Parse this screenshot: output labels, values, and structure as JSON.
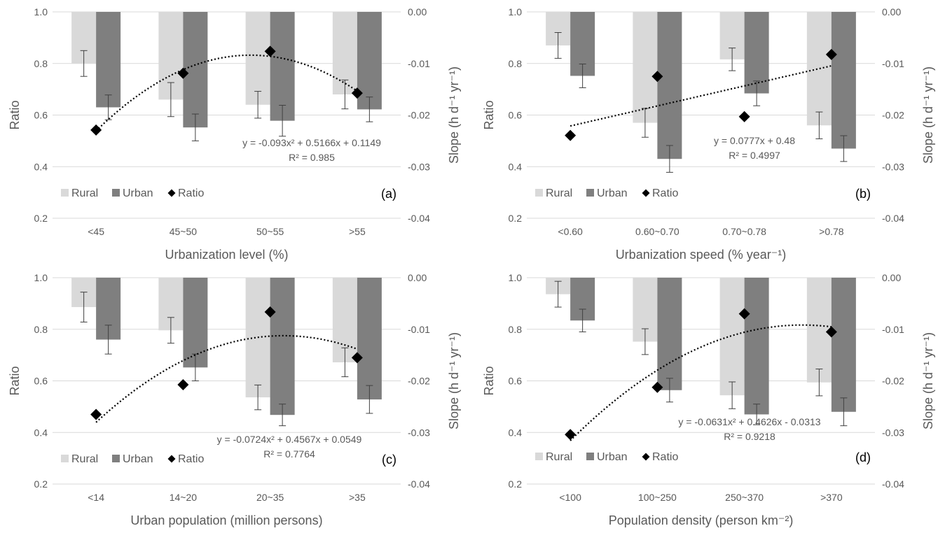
{
  "colors": {
    "rural": "#d9d9d9",
    "urban": "#7f7f7f",
    "ratio": "#000000",
    "text": "#595959",
    "grid": "#d9d9d9",
    "error_bar": "#404040"
  },
  "chart_data": [
    {
      "type": "bar",
      "panel_label": "(a)",
      "xlabel": "Urbanization level (%)",
      "ylabel": "Ratio",
      "y2label": "Slope (h d⁻¹ yr⁻¹)",
      "ylim": [
        0.2,
        1.0
      ],
      "y2lim": [
        -0.04,
        0.0
      ],
      "yticks": [
        "0.2",
        "0.4",
        "0.6",
        "0.8",
        "1.0"
      ],
      "y2ticks": [
        "0.00",
        "-0.01",
        "-0.02",
        "-0.03",
        "-0.04"
      ],
      "categories": [
        "<45",
        "45~50",
        "50~55",
        ">55"
      ],
      "legend": [
        "Rural",
        "Urban",
        "Ratio"
      ],
      "legend_position": "bottom-left",
      "grid": true,
      "series": [
        {
          "name": "Rural",
          "axis": "slope",
          "values": [
            -0.01,
            -0.017,
            -0.018,
            -0.016
          ],
          "errors": [
            0.0025,
            0.0033,
            0.0026,
            0.0028
          ]
        },
        {
          "name": "Urban",
          "axis": "slope",
          "values": [
            -0.0185,
            -0.0224,
            -0.0211,
            -0.0189
          ],
          "errors": [
            0.0024,
            0.0026,
            0.003,
            0.0024
          ]
        },
        {
          "name": "Ratio",
          "axis": "ratio",
          "values": [
            0.542,
            0.762,
            0.847,
            0.685
          ]
        }
      ],
      "trendline": {
        "equation": "y = -0.093x² + 0.5166x + 0.1149",
        "r2": "R² = 0.985",
        "coefficients": [
          -0.093,
          0.5166,
          0.1149
        ]
      }
    },
    {
      "type": "bar",
      "panel_label": "(b)",
      "xlabel": "Urbanization speed (% year⁻¹)",
      "ylabel": "Ratio",
      "y2label": "Slope (h d⁻¹ yr⁻¹)",
      "ylim": [
        0.2,
        1.0
      ],
      "y2lim": [
        -0.04,
        0.0
      ],
      "yticks": [
        "0.2",
        "0.4",
        "0.6",
        "0.8",
        "1.0"
      ],
      "y2ticks": [
        "0.00",
        "-0.01",
        "-0.02",
        "-0.03",
        "-0.04"
      ],
      "categories": [
        "<0.60",
        "0.60~0.70",
        "0.70~0.78",
        ">0.78"
      ],
      "legend": [
        "Rural",
        "Urban",
        "Ratio"
      ],
      "legend_position": "bottom-left",
      "grid": true,
      "series": [
        {
          "name": "Rural",
          "axis": "slope",
          "values": [
            -0.0065,
            -0.0215,
            -0.0092,
            -0.022
          ],
          "errors": [
            0.0025,
            0.0028,
            0.0022,
            0.0026
          ]
        },
        {
          "name": "Urban",
          "axis": "slope",
          "values": [
            -0.0124,
            -0.0285,
            -0.0158,
            -0.0265
          ],
          "errors": [
            0.0023,
            0.0026,
            0.0024,
            0.0025
          ]
        },
        {
          "name": "Ratio",
          "axis": "ratio",
          "values": [
            0.521,
            0.75,
            0.594,
            0.835
          ]
        }
      ],
      "trendline": {
        "equation": "y = 0.0777x + 0.48",
        "r2": "R² = 0.4997",
        "coefficients": [
          0,
          0.0777,
          0.48
        ]
      }
    },
    {
      "type": "bar",
      "panel_label": "(c)",
      "xlabel": "Urban population (million persons)",
      "ylabel": "Ratio",
      "y2label": "Slope (h d⁻¹ yr⁻¹)",
      "ylim": [
        0.2,
        1.0
      ],
      "y2lim": [
        -0.04,
        0.0
      ],
      "yticks": [
        "0.2",
        "0.4",
        "0.6",
        "0.8",
        "1.0"
      ],
      "y2ticks": [
        "0.00",
        "-0.01",
        "-0.02",
        "-0.03",
        "-0.04"
      ],
      "categories": [
        "<14",
        "14~20",
        "20~35",
        ">35"
      ],
      "legend": [
        "Rural",
        "Urban",
        "Ratio"
      ],
      "legend_position": "bottom-left",
      "grid": true,
      "series": [
        {
          "name": "Rural",
          "axis": "slope",
          "values": [
            -0.0057,
            -0.0102,
            -0.0232,
            -0.0164
          ],
          "errors": [
            0.0029,
            0.0025,
            0.0024,
            0.0028
          ]
        },
        {
          "name": "Urban",
          "axis": "slope",
          "values": [
            -0.012,
            -0.0174,
            -0.0266,
            -0.0236
          ],
          "errors": [
            0.0028,
            0.0026,
            0.0021,
            0.0027
          ]
        },
        {
          "name": "Ratio",
          "axis": "ratio",
          "values": [
            0.47,
            0.585,
            0.867,
            0.69
          ]
        }
      ],
      "trendline": {
        "equation": "y = -0.0724x² + 0.4567x + 0.0549",
        "r2": "R² = 0.7764",
        "coefficients": [
          -0.0724,
          0.4567,
          0.0549
        ]
      }
    },
    {
      "type": "bar",
      "panel_label": "(d)",
      "xlabel": "Population density (person km⁻²)",
      "ylabel": "Ratio",
      "y2label": "Slope (h d⁻¹ yr⁻¹)",
      "ylim": [
        0.2,
        1.0
      ],
      "y2lim": [
        -0.04,
        0.0
      ],
      "yticks": [
        "0.2",
        "0.4",
        "0.6",
        "0.8",
        "1.0"
      ],
      "y2ticks": [
        "0.00",
        "-0.01",
        "-0.02",
        "-0.03",
        "-0.04"
      ],
      "categories": [
        "<100",
        "100~250",
        "250~370",
        ">370"
      ],
      "legend": [
        "Rural",
        "Urban",
        "Ratio"
      ],
      "legend_position": "bottom-left",
      "grid": true,
      "series": [
        {
          "name": "Rural",
          "axis": "slope",
          "values": [
            -0.0032,
            -0.0124,
            -0.0228,
            -0.0203
          ],
          "errors": [
            0.0025,
            0.0025,
            0.0026,
            0.0026
          ]
        },
        {
          "name": "Urban",
          "axis": "slope",
          "values": [
            -0.0083,
            -0.0218,
            -0.0265,
            -0.026
          ],
          "errors": [
            0.0022,
            0.0023,
            0.002,
            0.0027
          ]
        },
        {
          "name": "Ratio",
          "axis": "ratio",
          "values": [
            0.392,
            0.575,
            0.86,
            0.79
          ]
        }
      ],
      "trendline": {
        "equation": "y = -0.0631x² + 0.4626x - 0.0313",
        "r2": "R² = 0.9218",
        "coefficients": [
          -0.0631,
          0.4626,
          -0.0313
        ]
      }
    }
  ]
}
